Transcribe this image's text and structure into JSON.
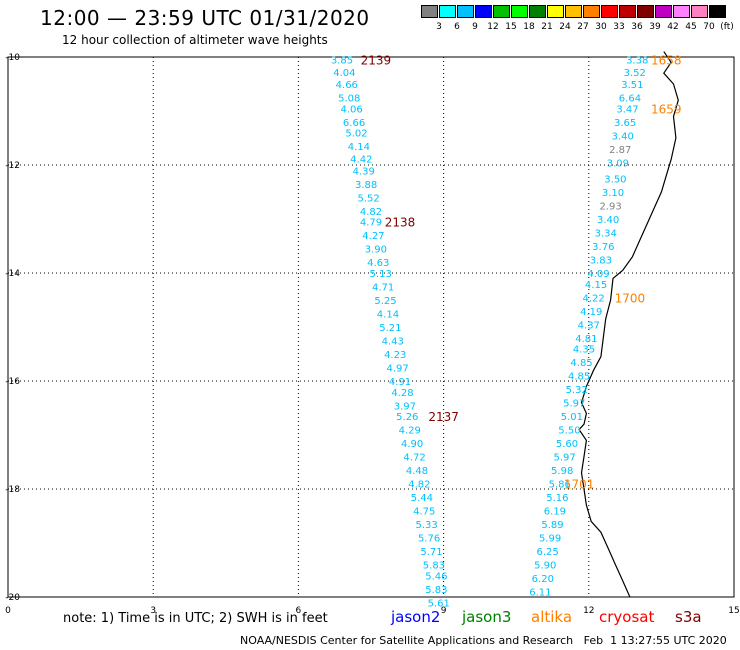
{
  "header": {
    "title": "12:00 — 23:59 UTC 01/31/2020",
    "subtitle": "12 hour collection of altimeter wave heights"
  },
  "colorbar": {
    "colors": [
      "#808080",
      "#00ffff",
      "#00c0ff",
      "#0000ff",
      "#00c000",
      "#00ff00",
      "#008000",
      "#ffff00",
      "#ffc000",
      "#ff8000",
      "#ff0000",
      "#c00000",
      "#800000",
      "#c000c0",
      "#ff80ff",
      "#ff80c0",
      "#000000"
    ],
    "labels": [
      "3",
      "6",
      "9",
      "12",
      "15",
      "18",
      "21",
      "24",
      "27",
      "30",
      "33",
      "36",
      "39",
      "42",
      "45",
      "70",
      "(ft)"
    ]
  },
  "axes": {
    "x_ticks": [
      "0",
      "3",
      "6",
      "9",
      "12",
      "15"
    ],
    "y_ticks": [
      "-10",
      "-12",
      "-14",
      "-16",
      "-18",
      "-20"
    ]
  },
  "chart_data": {
    "type": "scatter",
    "xlim": [
      0,
      15
    ],
    "ylim": [
      -20,
      -10
    ],
    "grid": true,
    "track_a": {
      "color": "#00c0ff",
      "labels": [
        {
          "x": 6.9,
          "y": -10.05,
          "v": "3.85"
        },
        {
          "x": 6.95,
          "y": -10.28,
          "v": "4.04"
        },
        {
          "x": 7.0,
          "y": -10.5,
          "v": "4.66"
        },
        {
          "x": 7.05,
          "y": -10.75,
          "v": "5.08"
        },
        {
          "x": 7.1,
          "y": -10.95,
          "v": "4.06"
        },
        {
          "x": 7.15,
          "y": -11.2,
          "v": "6.66"
        },
        {
          "x": 7.2,
          "y": -11.4,
          "v": "5.02"
        },
        {
          "x": 7.25,
          "y": -11.65,
          "v": "4.14"
        },
        {
          "x": 7.3,
          "y": -11.88,
          "v": "4.42"
        },
        {
          "x": 7.35,
          "y": -12.1,
          "v": "4.39"
        },
        {
          "x": 7.4,
          "y": -12.35,
          "v": "3.88"
        },
        {
          "x": 7.45,
          "y": -12.6,
          "v": "5.52"
        },
        {
          "x": 7.5,
          "y": -12.85,
          "v": "4.82"
        },
        {
          "x": 7.5,
          "y": -13.05,
          "v": "4.79"
        },
        {
          "x": 7.55,
          "y": -13.3,
          "v": "4.27"
        },
        {
          "x": 7.6,
          "y": -13.55,
          "v": "3.90"
        },
        {
          "x": 7.65,
          "y": -13.8,
          "v": "4.63"
        },
        {
          "x": 7.7,
          "y": -14.0,
          "v": "5.13"
        },
        {
          "x": 7.75,
          "y": -14.25,
          "v": "4.71"
        },
        {
          "x": 7.8,
          "y": -14.5,
          "v": "5.25"
        },
        {
          "x": 7.85,
          "y": -14.75,
          "v": "4.14"
        },
        {
          "x": 7.9,
          "y": -15.0,
          "v": "5.21"
        },
        {
          "x": 7.95,
          "y": -15.25,
          "v": "4.43"
        },
        {
          "x": 8.0,
          "y": -15.5,
          "v": "4.23"
        },
        {
          "x": 8.05,
          "y": -15.75,
          "v": "4.97"
        },
        {
          "x": 8.1,
          "y": -16.0,
          "v": "4.91"
        },
        {
          "x": 8.15,
          "y": -16.2,
          "v": "4.28"
        },
        {
          "x": 8.2,
          "y": -16.45,
          "v": "3.97"
        },
        {
          "x": 8.25,
          "y": -16.65,
          "v": "5.26"
        },
        {
          "x": 8.3,
          "y": -16.9,
          "v": "4.29"
        },
        {
          "x": 8.35,
          "y": -17.15,
          "v": "4.90"
        },
        {
          "x": 8.4,
          "y": -17.4,
          "v": "4.72"
        },
        {
          "x": 8.45,
          "y": -17.65,
          "v": "4.48"
        },
        {
          "x": 8.5,
          "y": -17.9,
          "v": "4.82"
        },
        {
          "x": 8.55,
          "y": -18.15,
          "v": "5.44"
        },
        {
          "x": 8.6,
          "y": -18.4,
          "v": "4.75"
        },
        {
          "x": 8.65,
          "y": -18.65,
          "v": "5.33"
        },
        {
          "x": 8.7,
          "y": -18.9,
          "v": "5.76"
        },
        {
          "x": 8.75,
          "y": -19.15,
          "v": "5.71"
        },
        {
          "x": 8.8,
          "y": -19.4,
          "v": "5.83"
        },
        {
          "x": 8.85,
          "y": -19.6,
          "v": "5.46"
        },
        {
          "x": 8.85,
          "y": -19.85,
          "v": "5.83"
        },
        {
          "x": 8.9,
          "y": -20.1,
          "v": "5.61"
        }
      ]
    },
    "track_b": {
      "color": "#00c0ff",
      "labels": [
        {
          "x": 13.0,
          "y": -10.05,
          "v": "3.38"
        },
        {
          "x": 12.95,
          "y": -10.28,
          "v": "3.52"
        },
        {
          "x": 12.9,
          "y": -10.5,
          "v": "3.51"
        },
        {
          "x": 12.85,
          "y": -10.75,
          "v": "6.64"
        },
        {
          "x": 12.8,
          "y": -10.95,
          "v": "3.47"
        },
        {
          "x": 12.75,
          "y": -11.2,
          "v": "3.65"
        },
        {
          "x": 12.7,
          "y": -11.45,
          "v": "3.40"
        },
        {
          "x": 12.65,
          "y": -11.7,
          "v": "2.87",
          "c": "#808080"
        },
        {
          "x": 12.6,
          "y": -11.95,
          "v": "3.09"
        },
        {
          "x": 12.55,
          "y": -12.25,
          "v": "3.50"
        },
        {
          "x": 12.5,
          "y": -12.5,
          "v": "3.10"
        },
        {
          "x": 12.45,
          "y": -12.75,
          "v": "2.93",
          "c": "#808080"
        },
        {
          "x": 12.4,
          "y": -13.0,
          "v": "3.40"
        },
        {
          "x": 12.35,
          "y": -13.25,
          "v": "3.34"
        },
        {
          "x": 12.3,
          "y": -13.5,
          "v": "3.76"
        },
        {
          "x": 12.25,
          "y": -13.75,
          "v": "3.83"
        },
        {
          "x": 12.2,
          "y": -14.0,
          "v": "4.09"
        },
        {
          "x": 12.15,
          "y": -14.2,
          "v": "4.15"
        },
        {
          "x": 12.1,
          "y": -14.45,
          "v": "4.22"
        },
        {
          "x": 12.05,
          "y": -14.7,
          "v": "4.19"
        },
        {
          "x": 12.0,
          "y": -14.95,
          "v": "4.37"
        },
        {
          "x": 11.95,
          "y": -15.2,
          "v": "4.81"
        },
        {
          "x": 11.9,
          "y": -15.4,
          "v": "4.35"
        },
        {
          "x": 11.85,
          "y": -15.65,
          "v": "4.85"
        },
        {
          "x": 11.8,
          "y": -15.9,
          "v": "4.85"
        },
        {
          "x": 11.75,
          "y": -16.15,
          "v": "5.32"
        },
        {
          "x": 11.7,
          "y": -16.4,
          "v": "5.97"
        },
        {
          "x": 11.65,
          "y": -16.65,
          "v": "5.01"
        },
        {
          "x": 11.6,
          "y": -16.9,
          "v": "5.50"
        },
        {
          "x": 11.55,
          "y": -17.15,
          "v": "5.60"
        },
        {
          "x": 11.5,
          "y": -17.4,
          "v": "5.97"
        },
        {
          "x": 11.45,
          "y": -17.65,
          "v": "5.98"
        },
        {
          "x": 11.4,
          "y": -17.9,
          "v": "5.86"
        },
        {
          "x": 11.35,
          "y": -18.15,
          "v": "5.16"
        },
        {
          "x": 11.3,
          "y": -18.4,
          "v": "6.19"
        },
        {
          "x": 11.25,
          "y": -18.65,
          "v": "5.89"
        },
        {
          "x": 11.2,
          "y": -18.9,
          "v": "5.99"
        },
        {
          "x": 11.15,
          "y": -19.15,
          "v": "6.25"
        },
        {
          "x": 11.1,
          "y": -19.4,
          "v": "5.90"
        },
        {
          "x": 11.05,
          "y": -19.65,
          "v": "6.20"
        },
        {
          "x": 11.0,
          "y": -19.9,
          "v": "6.11"
        }
      ]
    },
    "time_labels": [
      {
        "x": 7.6,
        "y": -10.05,
        "v": "2139",
        "c": "#800000"
      },
      {
        "x": 8.1,
        "y": -13.05,
        "v": "2138",
        "c": "#800000"
      },
      {
        "x": 9.0,
        "y": -16.65,
        "v": "2137",
        "c": "#800000"
      },
      {
        "x": 13.6,
        "y": -10.05,
        "v": "1658",
        "c": "#ff8000"
      },
      {
        "x": 13.6,
        "y": -10.95,
        "v": "1659",
        "c": "#ff8000"
      },
      {
        "x": 12.85,
        "y": -14.45,
        "v": "1700",
        "c": "#ff8000"
      },
      {
        "x": 11.8,
        "y": -17.9,
        "v": "1701",
        "c": "#ff8000"
      }
    ],
    "coastline": [
      [
        13.55,
        -9.9
      ],
      [
        13.7,
        -10.1
      ],
      [
        13.55,
        -10.3
      ],
      [
        13.75,
        -10.5
      ],
      [
        13.85,
        -10.8
      ],
      [
        13.75,
        -11.1
      ],
      [
        13.8,
        -11.5
      ],
      [
        13.7,
        -11.9
      ],
      [
        13.6,
        -12.2
      ],
      [
        13.5,
        -12.5
      ],
      [
        13.35,
        -12.8
      ],
      [
        13.2,
        -13.1
      ],
      [
        13.05,
        -13.4
      ],
      [
        12.9,
        -13.7
      ],
      [
        12.7,
        -13.95
      ],
      [
        12.5,
        -14.1
      ],
      [
        12.45,
        -14.5
      ],
      [
        12.35,
        -14.85
      ],
      [
        12.3,
        -15.2
      ],
      [
        12.25,
        -15.55
      ],
      [
        12.1,
        -15.8
      ],
      [
        11.95,
        -16.1
      ],
      [
        11.85,
        -16.4
      ],
      [
        11.95,
        -16.6
      ],
      [
        11.9,
        -16.8
      ],
      [
        11.8,
        -16.9
      ],
      [
        11.95,
        -17.1
      ],
      [
        11.9,
        -17.4
      ],
      [
        11.85,
        -17.7
      ],
      [
        11.9,
        -18.0
      ],
      [
        11.95,
        -18.3
      ],
      [
        12.05,
        -18.6
      ],
      [
        12.25,
        -18.8
      ],
      [
        12.4,
        -19.1
      ],
      [
        12.55,
        -19.4
      ],
      [
        12.7,
        -19.7
      ],
      [
        12.85,
        -20.0
      ]
    ]
  },
  "legend": {
    "note": "note: 1) Time is in UTC; 2) SWH is in feet",
    "satellites": [
      {
        "name": "jason2",
        "color": "#0000ff"
      },
      {
        "name": "jason3",
        "color": "#008000"
      },
      {
        "name": "altika",
        "color": "#ff8000"
      },
      {
        "name": "cryosat",
        "color": "#ff0000"
      },
      {
        "name": "s3a",
        "color": "#800000"
      }
    ]
  },
  "footer": "NOAA/NESDIS Center for Satellite Applications and Research   Feb  1 13:27:55 UTC 2020"
}
